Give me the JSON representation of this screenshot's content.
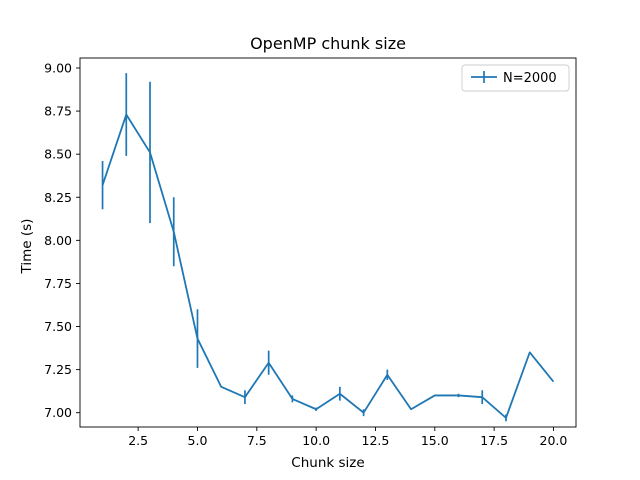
{
  "chart_data": {
    "type": "line",
    "title": "OpenMP chunk size",
    "xlabel": "Chunk size",
    "ylabel": "Time (s)",
    "xlim": [
      0.05,
      20.95
    ],
    "ylim": [
      6.917,
      9.058
    ],
    "xticks": [
      2.5,
      5.0,
      7.5,
      10.0,
      12.5,
      15.0,
      17.5,
      20.0
    ],
    "xtick_labels": [
      "2.5",
      "5.0",
      "7.5",
      "10.0",
      "12.5",
      "15.0",
      "17.5",
      "20.0"
    ],
    "yticks": [
      7.0,
      7.25,
      7.5,
      7.75,
      8.0,
      8.25,
      8.5,
      8.75,
      9.0
    ],
    "ytick_labels": [
      "7.00",
      "7.25",
      "7.50",
      "7.75",
      "8.00",
      "8.25",
      "8.50",
      "8.75",
      "9.00"
    ],
    "grid": false,
    "legend_position": "top-right",
    "series": [
      {
        "name": "N=2000",
        "color": "#1f77b4",
        "x": [
          1,
          2,
          3,
          4,
          5,
          6,
          7,
          8,
          9,
          10,
          11,
          12,
          13,
          14,
          15,
          16,
          17,
          18,
          19,
          20
        ],
        "y": [
          8.32,
          8.73,
          8.51,
          8.05,
          7.43,
          7.15,
          7.09,
          7.29,
          7.08,
          7.02,
          7.11,
          7.0,
          7.22,
          7.02,
          7.1,
          7.1,
          7.09,
          6.97,
          7.35,
          7.18
        ],
        "yerr": [
          0.14,
          0.24,
          0.41,
          0.2,
          0.17,
          0.0,
          0.04,
          0.07,
          0.02,
          0.01,
          0.04,
          0.02,
          0.03,
          0.0,
          0.0,
          0.01,
          0.04,
          0.02,
          0.0,
          0.0
        ]
      }
    ]
  }
}
